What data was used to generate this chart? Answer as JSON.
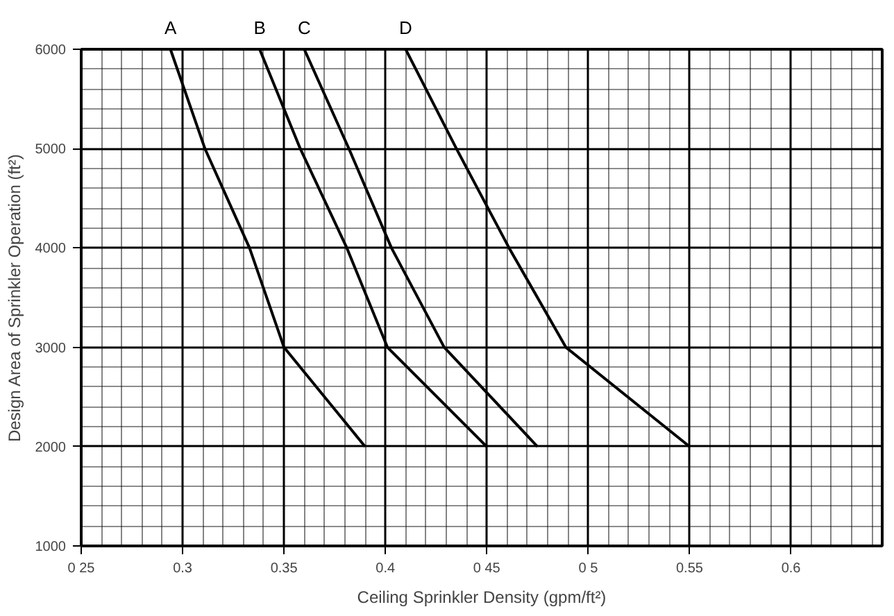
{
  "chart_data": {
    "type": "line",
    "xlabel": "Ceiling Sprinkler Density (gpm/ft²)",
    "ylabel": "Design Area of Sprinkler Operation (ft²)",
    "xlim": [
      0.25,
      0.645
    ],
    "ylim": [
      1000,
      6000
    ],
    "xticks": [
      {
        "value": 0.25,
        "label": "0 25"
      },
      0.3,
      0.35,
      0.4,
      {
        "value": 0.45,
        "label": "0 45"
      },
      {
        "value": 0.5,
        "label": "0 5"
      },
      0.55,
      0.6
    ],
    "yticks": [
      1000,
      2000,
      3000,
      4000,
      5000,
      6000
    ],
    "grid": true,
    "line_style": "solid",
    "marker": "none",
    "series": [
      {
        "name": "A",
        "color": "#000000",
        "x": [
          0.294,
          0.311,
          0.333,
          0.35,
          0.39
        ],
        "values": [
          6000,
          5000,
          4000,
          3000,
          2000
        ]
      },
      {
        "name": "B",
        "color": "#000000",
        "x": [
          0.338,
          0.358,
          0.381,
          0.401,
          0.45
        ],
        "values": [
          6000,
          5000,
          4000,
          3000,
          2000
        ]
      },
      {
        "name": "C",
        "color": "#000000",
        "x": [
          0.36,
          0.382,
          0.403,
          0.429,
          0.475
        ],
        "values": [
          6000,
          5000,
          4000,
          3000,
          2000
        ]
      },
      {
        "name": "D",
        "color": "#000000",
        "x": [
          0.41,
          0.435,
          0.461,
          0.489,
          0.55
        ],
        "values": [
          6000,
          5000,
          4000,
          3000,
          2000
        ]
      }
    ]
  }
}
